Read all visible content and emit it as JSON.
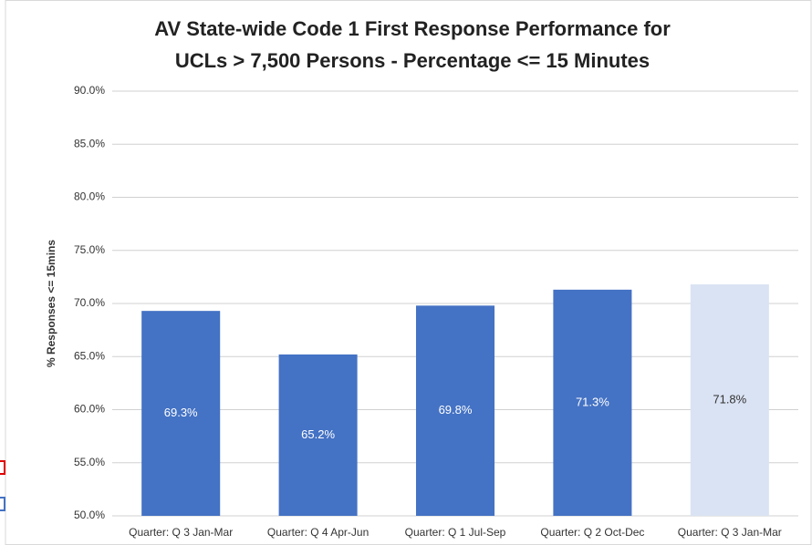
{
  "chart_data": {
    "type": "bar",
    "title": [
      "AV State-wide Code 1 First Response Performance for",
      "UCLs > 7,500 Persons - Percentage <= 15 Minutes"
    ],
    "y_label": "% Responses <= 15mins",
    "categories": [
      "Quarter: Q 3 Jan-Mar",
      "Quarter: Q 4 Apr-Jun",
      "Quarter: Q 1 Jul-Sep",
      "Quarter: Q 2 Oct-Dec",
      "Quarter: Q 3 Jan-Mar"
    ],
    "values": [
      69.3,
      65.2,
      69.8,
      71.3,
      71.8
    ],
    "value_labels": [
      "69.3%",
      "65.2%",
      "69.8%",
      "71.3%",
      "71.8%"
    ],
    "colors": [
      "#4472c4",
      "#4472c4",
      "#4472c4",
      "#4472c4",
      "#dae3f3"
    ],
    "ylim": [
      50,
      90
    ],
    "yticks": [
      {
        "value": 50,
        "label": "50.0%"
      },
      {
        "value": 55,
        "label": "55.0%"
      },
      {
        "value": 60,
        "label": "60.0%"
      },
      {
        "value": 65,
        "label": "65.0%"
      },
      {
        "value": 70,
        "label": "70.0%"
      },
      {
        "value": 75,
        "label": "75.0%"
      },
      {
        "value": 80,
        "label": "80.0%"
      },
      {
        "value": 85,
        "label": "85.0%"
      },
      {
        "value": 90,
        "label": "90.0%"
      }
    ],
    "grid": true
  }
}
